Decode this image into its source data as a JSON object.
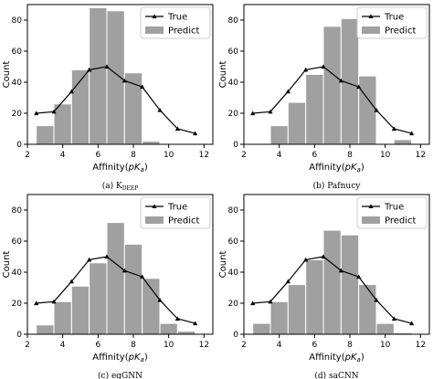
{
  "chart_data": [
    {
      "type": "bar",
      "caption": "(a) K",
      "caption_sub": "DEEP",
      "xlabel_prefix": "Affinity(",
      "xlabel_italic": "pK",
      "xlabel_sub": "a",
      "xlabel_suffix": ")",
      "ylabel": "Count",
      "xlim": [
        2,
        12.5
      ],
      "ylim": [
        0,
        90
      ],
      "xticks": [
        2,
        4,
        6,
        8,
        10,
        12
      ],
      "yticks": [
        0,
        20,
        40,
        60,
        80
      ],
      "bin_edges": [
        2.5,
        3.5,
        4.5,
        5.5,
        6.5,
        7.5,
        8.5,
        9.5,
        10.5,
        11.5
      ],
      "legend": {
        "placement": "top-right",
        "line_label": "True",
        "bar_label": "Predict"
      },
      "series": [
        {
          "name": "Predict",
          "kind": "bar",
          "values": [
            12,
            26,
            48,
            88,
            86,
            46,
            2,
            0,
            0
          ]
        },
        {
          "name": "True",
          "kind": "line",
          "x": [
            2.5,
            3.5,
            4.5,
            5.5,
            6.5,
            7.5,
            8.5,
            9.5,
            10.5,
            11.5
          ],
          "y": [
            20,
            21,
            34,
            48,
            50,
            41,
            37,
            22,
            10,
            7
          ]
        }
      ]
    },
    {
      "type": "bar",
      "caption": "(b) Pafnucy",
      "caption_sub": "",
      "xlabel_prefix": "Affinity(",
      "xlabel_italic": "pK",
      "xlabel_sub": "a",
      "xlabel_suffix": ")",
      "ylabel": "Count",
      "xlim": [
        2,
        12.5
      ],
      "ylim": [
        0,
        90
      ],
      "xticks": [
        2,
        4,
        6,
        8,
        10,
        12
      ],
      "yticks": [
        0,
        20,
        40,
        60,
        80
      ],
      "bin_edges": [
        3.5,
        4.5,
        5.5,
        6.5,
        7.5,
        8.5,
        9.5,
        10.5,
        11.5
      ],
      "legend": {
        "placement": "top-right",
        "line_label": "True",
        "bar_label": "Predict"
      },
      "series": [
        {
          "name": "Predict",
          "kind": "bar",
          "values": [
            12,
            27,
            45,
            76,
            81,
            44,
            0,
            3
          ]
        },
        {
          "name": "True",
          "kind": "line",
          "x": [
            2.5,
            3.5,
            4.5,
            5.5,
            6.5,
            7.5,
            8.5,
            9.5,
            10.5,
            11.5
          ],
          "y": [
            20,
            21,
            34,
            48,
            50,
            41,
            37,
            22,
            10,
            7
          ]
        }
      ]
    },
    {
      "type": "bar",
      "caption": "(c) egGNN",
      "caption_sub": "",
      "xlabel_prefix": "Affinity(",
      "xlabel_italic": "pK",
      "xlabel_sub": "a",
      "xlabel_suffix": ")",
      "ylabel": "Count",
      "xlim": [
        2,
        12.5
      ],
      "ylim": [
        0,
        90
      ],
      "xticks": [
        2,
        4,
        6,
        8,
        10,
        12
      ],
      "yticks": [
        0,
        20,
        40,
        60,
        80
      ],
      "bin_edges": [
        2.5,
        3.5,
        4.5,
        5.5,
        6.5,
        7.5,
        8.5,
        9.5,
        10.5,
        11.5
      ],
      "legend": {
        "placement": "top-right",
        "line_label": "True",
        "bar_label": "Predict"
      },
      "series": [
        {
          "name": "Predict",
          "kind": "bar",
          "values": [
            6,
            21,
            31,
            46,
            72,
            58,
            36,
            7,
            2
          ]
        },
        {
          "name": "True",
          "kind": "line",
          "x": [
            2.5,
            3.5,
            4.5,
            5.5,
            6.5,
            7.5,
            8.5,
            9.5,
            10.5,
            11.5
          ],
          "y": [
            20,
            21,
            34,
            48,
            50,
            41,
            37,
            22,
            10,
            7
          ]
        }
      ]
    },
    {
      "type": "bar",
      "caption": "(d) saCNN",
      "caption_sub": "",
      "xlabel_prefix": "Affinity(",
      "xlabel_italic": "pK",
      "xlabel_sub": "a",
      "xlabel_suffix": ")",
      "ylabel": "Count",
      "xlim": [
        2,
        12.5
      ],
      "ylim": [
        0,
        90
      ],
      "xticks": [
        2,
        4,
        6,
        8,
        10,
        12
      ],
      "yticks": [
        0,
        20,
        40,
        60,
        80
      ],
      "bin_edges": [
        2.5,
        3.5,
        4.5,
        5.5,
        6.5,
        7.5,
        8.5,
        9.5,
        10.5,
        11.5
      ],
      "legend": {
        "placement": "top-right",
        "line_label": "True",
        "bar_label": "Predict"
      },
      "series": [
        {
          "name": "Predict",
          "kind": "bar",
          "values": [
            7,
            21,
            32,
            48,
            67,
            64,
            32,
            7,
            1
          ]
        },
        {
          "name": "True",
          "kind": "line",
          "x": [
            2.5,
            3.5,
            4.5,
            5.5,
            6.5,
            7.5,
            8.5,
            9.5,
            10.5,
            11.5
          ],
          "y": [
            20,
            21,
            34,
            48,
            50,
            41,
            37,
            22,
            10,
            7
          ]
        }
      ]
    }
  ],
  "colors": {
    "bar_fill": "#a0a0a0",
    "bar_edge": "#ffffff",
    "line": "#000000",
    "axes": "#000000",
    "legend_edge": "#cccccc"
  }
}
